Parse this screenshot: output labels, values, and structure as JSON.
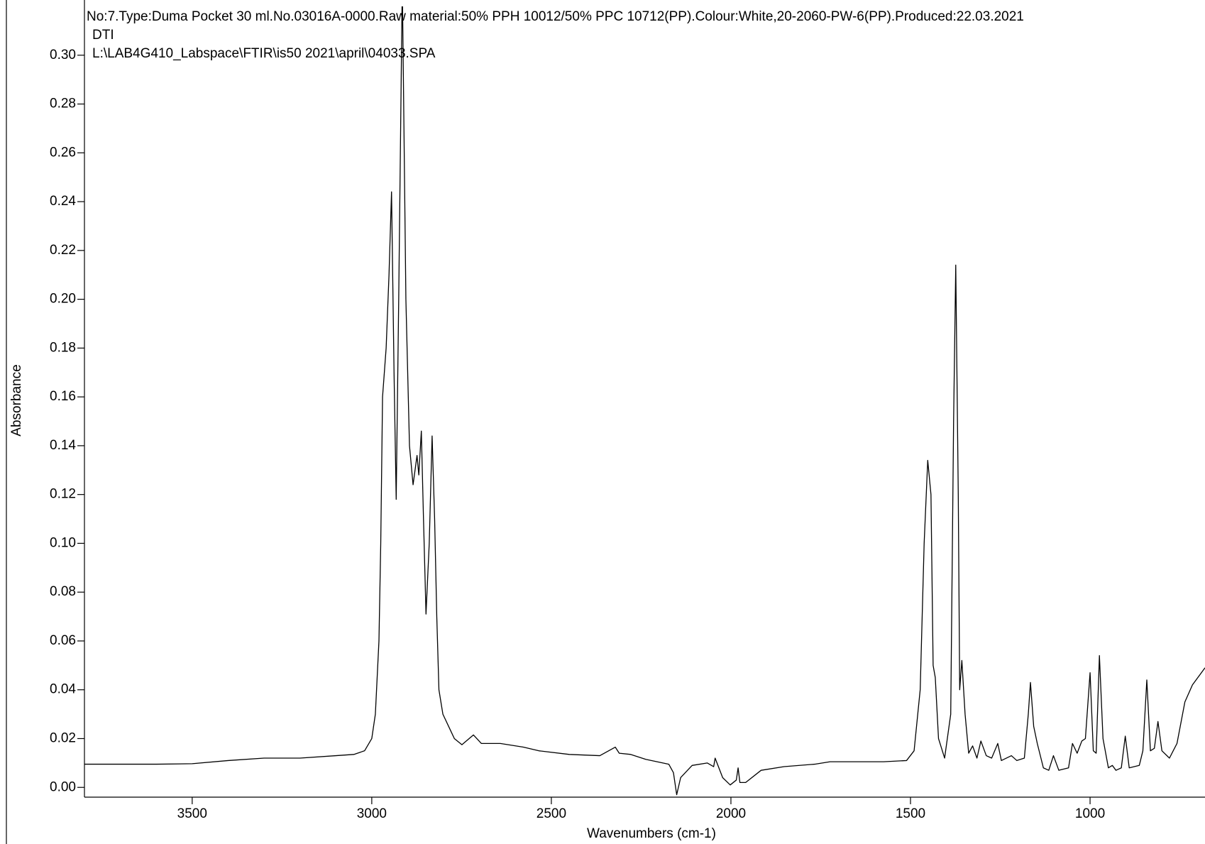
{
  "chart_data": {
    "type": "line",
    "title": "No:7.Type:Duma Pocket 30 ml.No.03016A-0000.Raw material:50% PPH 10012/50% PPC 10712(PP).Colour:White,20-2060-PW-6(PP).Produced:22.03.2021",
    "subtitle": "DTI",
    "annotations": [
      "L:\\LAB4G410_Labspace\\FTIR\\is50 2021\\april\\04033.SPA"
    ],
    "x_label": "Wavenumbers (cm-1)",
    "y_label": "Absorbance",
    "xlim": [
      3800,
      680
    ],
    "ylim": [
      -0.004,
      0.32
    ],
    "xticks": [
      3500,
      3000,
      2500,
      2000,
      1500,
      1000
    ],
    "yticks": [
      {
        "value": 0,
        "label": "0.00"
      },
      0.02,
      0.04,
      0.06,
      0.08,
      {
        "value": 0.1,
        "label": "0.10"
      },
      0.12,
      0.14,
      0.16,
      0.18,
      {
        "value": 0.2,
        "label": "0.20"
      },
      0.22,
      0.24,
      0.26,
      0.28,
      {
        "value": 0.3,
        "label": "0.30"
      }
    ],
    "series": [
      {
        "color": "#000000",
        "x": [
          3800,
          3600,
          3500,
          3400,
          3300,
          3200,
          3100,
          3050,
          3020,
          3000,
          2990,
          2980,
          2975,
          2970,
          2960,
          2952,
          2945,
          2938,
          2932,
          2925,
          2915,
          2905,
          2895,
          2885,
          2874,
          2869,
          2862,
          2856,
          2849,
          2840,
          2832,
          2825,
          2819,
          2813,
          2802,
          2770,
          2749,
          2717,
          2695,
          2642,
          2578,
          2535,
          2450,
          2365,
          2322,
          2311,
          2279,
          2237,
          2173,
          2160,
          2151,
          2140,
          2108,
          2066,
          2048,
          2044,
          2023,
          2002,
          1985,
          1980,
          1975,
          1959,
          1916,
          1852,
          1767,
          1724,
          1575,
          1511,
          1490,
          1473,
          1462,
          1452,
          1443,
          1437,
          1431,
          1422,
          1405,
          1388,
          1380,
          1374,
          1367,
          1363,
          1357,
          1348,
          1338,
          1327,
          1315,
          1304,
          1289,
          1274,
          1257,
          1247,
          1219,
          1204,
          1183,
          1172,
          1166,
          1157,
          1147,
          1130,
          1115,
          1102,
          1087,
          1060,
          1049,
          1036,
          1023,
          1013,
          1000,
          991,
          983,
          974,
          964,
          949,
          938,
          928,
          913,
          902,
          891,
          863,
          853,
          842,
          832,
          821,
          811,
          800,
          779,
          758,
          736,
          715,
          680
        ],
        "values": [
          0.0095,
          0.0095,
          0.0097,
          0.011,
          0.012,
          0.012,
          0.013,
          0.0135,
          0.015,
          0.02,
          0.03,
          0.06,
          0.1,
          0.16,
          0.18,
          0.21,
          0.244,
          0.17,
          0.118,
          0.2,
          0.33,
          0.2,
          0.14,
          0.124,
          0.136,
          0.128,
          0.146,
          0.11,
          0.071,
          0.1,
          0.144,
          0.11,
          0.07,
          0.04,
          0.03,
          0.02,
          0.0175,
          0.0215,
          0.018,
          0.018,
          0.0165,
          0.015,
          0.0135,
          0.013,
          0.0165,
          0.014,
          0.0135,
          0.0115,
          0.0095,
          0.006,
          -0.003,
          0.004,
          0.009,
          0.01,
          0.0085,
          0.012,
          0.004,
          0.001,
          0.003,
          0.008,
          0.002,
          0.002,
          0.007,
          0.0085,
          0.0095,
          0.0105,
          0.0105,
          0.011,
          0.015,
          0.04,
          0.1,
          0.134,
          0.12,
          0.05,
          0.045,
          0.02,
          0.012,
          0.03,
          0.15,
          0.214,
          0.12,
          0.04,
          0.052,
          0.03,
          0.014,
          0.017,
          0.012,
          0.019,
          0.013,
          0.012,
          0.018,
          0.011,
          0.013,
          0.011,
          0.012,
          0.03,
          0.043,
          0.025,
          0.018,
          0.008,
          0.007,
          0.013,
          0.007,
          0.008,
          0.018,
          0.014,
          0.019,
          0.02,
          0.047,
          0.015,
          0.014,
          0.054,
          0.02,
          0.008,
          0.009,
          0.007,
          0.008,
          0.021,
          0.008,
          0.009,
          0.015,
          0.044,
          0.015,
          0.016,
          0.027,
          0.015,
          0.012,
          0.018,
          0.035,
          0.042,
          0.049
        ]
      }
    ]
  }
}
